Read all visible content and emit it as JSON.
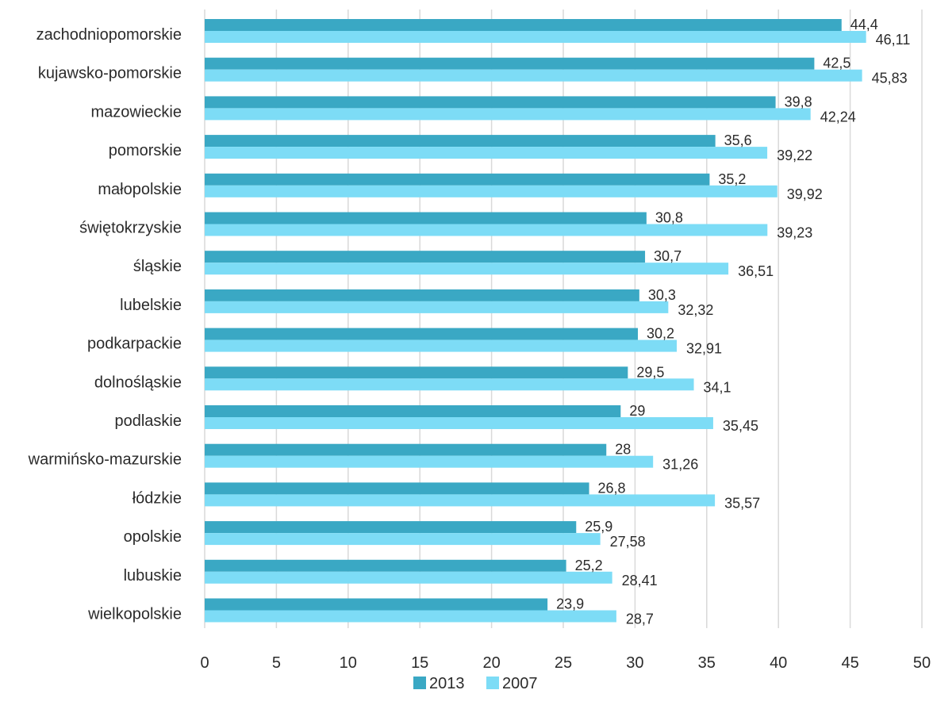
{
  "chart_data": {
    "type": "bar",
    "orientation": "horizontal",
    "categories": [
      "zachodniopomorskie",
      "kujawsko-pomorskie",
      "mazowieckie",
      "pomorskie",
      "małopolskie",
      "świętokrzyskie",
      "śląskie",
      "lubelskie",
      "podkarpackie",
      "dolnośląskie",
      "podlaskie",
      "warmińsko-mazurskie",
      "łódzkie",
      "opolskie",
      "lubuskie",
      "wielkopolskie"
    ],
    "series": [
      {
        "name": "2013",
        "color": "#3aa8c4",
        "values": [
          44.4,
          42.5,
          39.8,
          35.6,
          35.2,
          30.8,
          30.7,
          30.3,
          30.2,
          29.5,
          29,
          28,
          26.8,
          25.9,
          25.2,
          23.9
        ],
        "labels": [
          "44,4",
          "42,5",
          "39,8",
          "35,6",
          "35,2",
          "30,8",
          "30,7",
          "30,3",
          "30,2",
          "29,5",
          "29",
          "28",
          "26,8",
          "25,9",
          "25,2",
          "23,9"
        ]
      },
      {
        "name": "2007",
        "color": "#7ddcf6",
        "values": [
          46.11,
          45.83,
          42.24,
          39.22,
          39.92,
          39.23,
          36.51,
          32.32,
          32.91,
          34.1,
          35.45,
          31.26,
          35.57,
          27.58,
          28.41,
          28.7
        ],
        "labels": [
          "46,11",
          "45,83",
          "42,24",
          "39,22",
          "39,92",
          "39,23",
          "36,51",
          "32,32",
          "32,91",
          "34,1",
          "35,45",
          "31,26",
          "35,57",
          "27,58",
          "28,41",
          "28,7"
        ]
      }
    ],
    "xlim": [
      0,
      50
    ],
    "xticks": [
      "0",
      "5",
      "10",
      "15",
      "20",
      "25",
      "30",
      "35",
      "40",
      "45",
      "50"
    ],
    "grid": true,
    "legend": "bottom",
    "title": "",
    "xlabel": "",
    "ylabel": ""
  }
}
